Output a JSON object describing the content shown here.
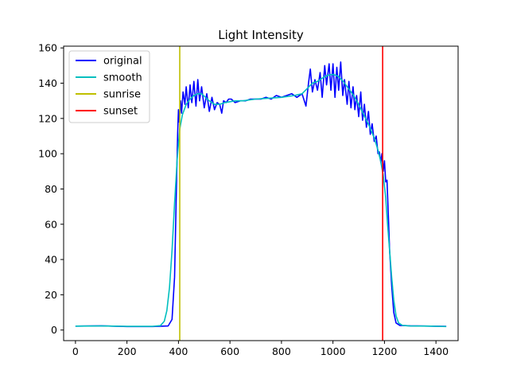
{
  "chart_data": {
    "type": "line",
    "title": "Light Intensity",
    "xlabel": "",
    "ylabel": "",
    "xlim": [
      -46,
      1486
    ],
    "ylim": [
      -6,
      161
    ],
    "xticks": [
      0,
      200,
      400,
      600,
      800,
      1000,
      1200,
      1400
    ],
    "yticks": [
      0,
      20,
      40,
      60,
      80,
      100,
      120,
      140,
      160
    ],
    "grid": false,
    "legend_position": "top-left",
    "series": [
      {
        "name": "original",
        "color": "#0000ff",
        "points": [
          [
            0,
            2.2
          ],
          [
            100,
            2.4
          ],
          [
            200,
            2.0
          ],
          [
            300,
            2.0
          ],
          [
            360,
            2.3
          ],
          [
            375,
            6
          ],
          [
            385,
            30
          ],
          [
            392,
            80
          ],
          [
            397,
            112
          ],
          [
            400,
            125
          ],
          [
            403,
            118
          ],
          [
            408,
            130
          ],
          [
            412,
            123
          ],
          [
            418,
            135
          ],
          [
            425,
            128
          ],
          [
            430,
            138
          ],
          [
            438,
            126
          ],
          [
            445,
            139
          ],
          [
            452,
            129
          ],
          [
            460,
            141
          ],
          [
            468,
            127
          ],
          [
            475,
            142
          ],
          [
            482,
            130
          ],
          [
            490,
            138
          ],
          [
            500,
            126
          ],
          [
            510,
            134
          ],
          [
            520,
            124
          ],
          [
            530,
            132
          ],
          [
            540,
            125
          ],
          [
            550,
            129
          ],
          [
            560,
            128
          ],
          [
            568,
            123
          ],
          [
            575,
            130
          ],
          [
            585,
            129
          ],
          [
            595,
            131
          ],
          [
            605,
            131
          ],
          [
            620,
            129
          ],
          [
            640,
            130
          ],
          [
            660,
            130
          ],
          [
            680,
            131
          ],
          [
            700,
            131
          ],
          [
            720,
            131
          ],
          [
            740,
            132
          ],
          [
            760,
            131
          ],
          [
            780,
            133
          ],
          [
            800,
            132
          ],
          [
            820,
            133
          ],
          [
            840,
            134
          ],
          [
            860,
            132
          ],
          [
            880,
            134
          ],
          [
            895,
            127
          ],
          [
            905,
            140
          ],
          [
            912,
            148
          ],
          [
            920,
            135
          ],
          [
            930,
            142
          ],
          [
            940,
            136
          ],
          [
            950,
            146
          ],
          [
            958,
            132
          ],
          [
            968,
            150
          ],
          [
            975,
            139
          ],
          [
            985,
            151
          ],
          [
            992,
            136
          ],
          [
            1000,
            151
          ],
          [
            1008,
            132
          ],
          [
            1015,
            149
          ],
          [
            1022,
            136
          ],
          [
            1030,
            152
          ],
          [
            1038,
            133
          ],
          [
            1045,
            142
          ],
          [
            1055,
            128
          ],
          [
            1062,
            141
          ],
          [
            1070,
            126
          ],
          [
            1078,
            138
          ],
          [
            1085,
            125
          ],
          [
            1092,
            133
          ],
          [
            1100,
            121
          ],
          [
            1108,
            135
          ],
          [
            1115,
            119
          ],
          [
            1122,
            128
          ],
          [
            1130,
            115
          ],
          [
            1138,
            124
          ],
          [
            1145,
            111
          ],
          [
            1152,
            117
          ],
          [
            1160,
            107
          ],
          [
            1168,
            110
          ],
          [
            1175,
            100
          ],
          [
            1180,
            101
          ],
          [
            1186,
            95
          ],
          [
            1190,
            100
          ],
          [
            1195,
            90
          ],
          [
            1200,
            96
          ],
          [
            1205,
            84
          ],
          [
            1210,
            85
          ],
          [
            1215,
            65
          ],
          [
            1220,
            45
          ],
          [
            1228,
            25
          ],
          [
            1236,
            10
          ],
          [
            1245,
            4
          ],
          [
            1260,
            2.6
          ],
          [
            1300,
            2.4
          ],
          [
            1380,
            2.2
          ],
          [
            1440,
            2.1
          ]
        ]
      },
      {
        "name": "smooth",
        "color": "#00bfbf",
        "points": [
          [
            0,
            2.2
          ],
          [
            100,
            2.3
          ],
          [
            200,
            2.1
          ],
          [
            300,
            2.1
          ],
          [
            330,
            2.5
          ],
          [
            345,
            5
          ],
          [
            355,
            11
          ],
          [
            365,
            24
          ],
          [
            375,
            45
          ],
          [
            385,
            72
          ],
          [
            395,
            97
          ],
          [
            405,
            114
          ],
          [
            415,
            122
          ],
          [
            430,
            128
          ],
          [
            445,
            131
          ],
          [
            460,
            133
          ],
          [
            475,
            134
          ],
          [
            490,
            134
          ],
          [
            505,
            132
          ],
          [
            520,
            130
          ],
          [
            540,
            128
          ],
          [
            560,
            128
          ],
          [
            580,
            129
          ],
          [
            600,
            129.5
          ],
          [
            620,
            130
          ],
          [
            650,
            130
          ],
          [
            700,
            131
          ],
          [
            750,
            131.5
          ],
          [
            800,
            132
          ],
          [
            850,
            133
          ],
          [
            880,
            134
          ],
          [
            900,
            137
          ],
          [
            920,
            140
          ],
          [
            940,
            141
          ],
          [
            960,
            143
          ],
          [
            980,
            144.5
          ],
          [
            1000,
            145
          ],
          [
            1020,
            144
          ],
          [
            1040,
            141
          ],
          [
            1060,
            137
          ],
          [
            1080,
            133
          ],
          [
            1100,
            128
          ],
          [
            1120,
            122
          ],
          [
            1140,
            116
          ],
          [
            1160,
            109
          ],
          [
            1175,
            102
          ],
          [
            1185,
            96
          ],
          [
            1195,
            88
          ],
          [
            1205,
            75
          ],
          [
            1212,
            60
          ],
          [
            1220,
            45
          ],
          [
            1228,
            30
          ],
          [
            1236,
            17
          ],
          [
            1245,
            8
          ],
          [
            1255,
            4
          ],
          [
            1270,
            2.6
          ],
          [
            1300,
            2.3
          ],
          [
            1380,
            2.2
          ],
          [
            1440,
            2.0
          ]
        ]
      },
      {
        "name": "sunrise",
        "color": "#bfbf00",
        "vline": 405
      },
      {
        "name": "sunset",
        "color": "#ff0000",
        "vline": 1193
      }
    ]
  }
}
